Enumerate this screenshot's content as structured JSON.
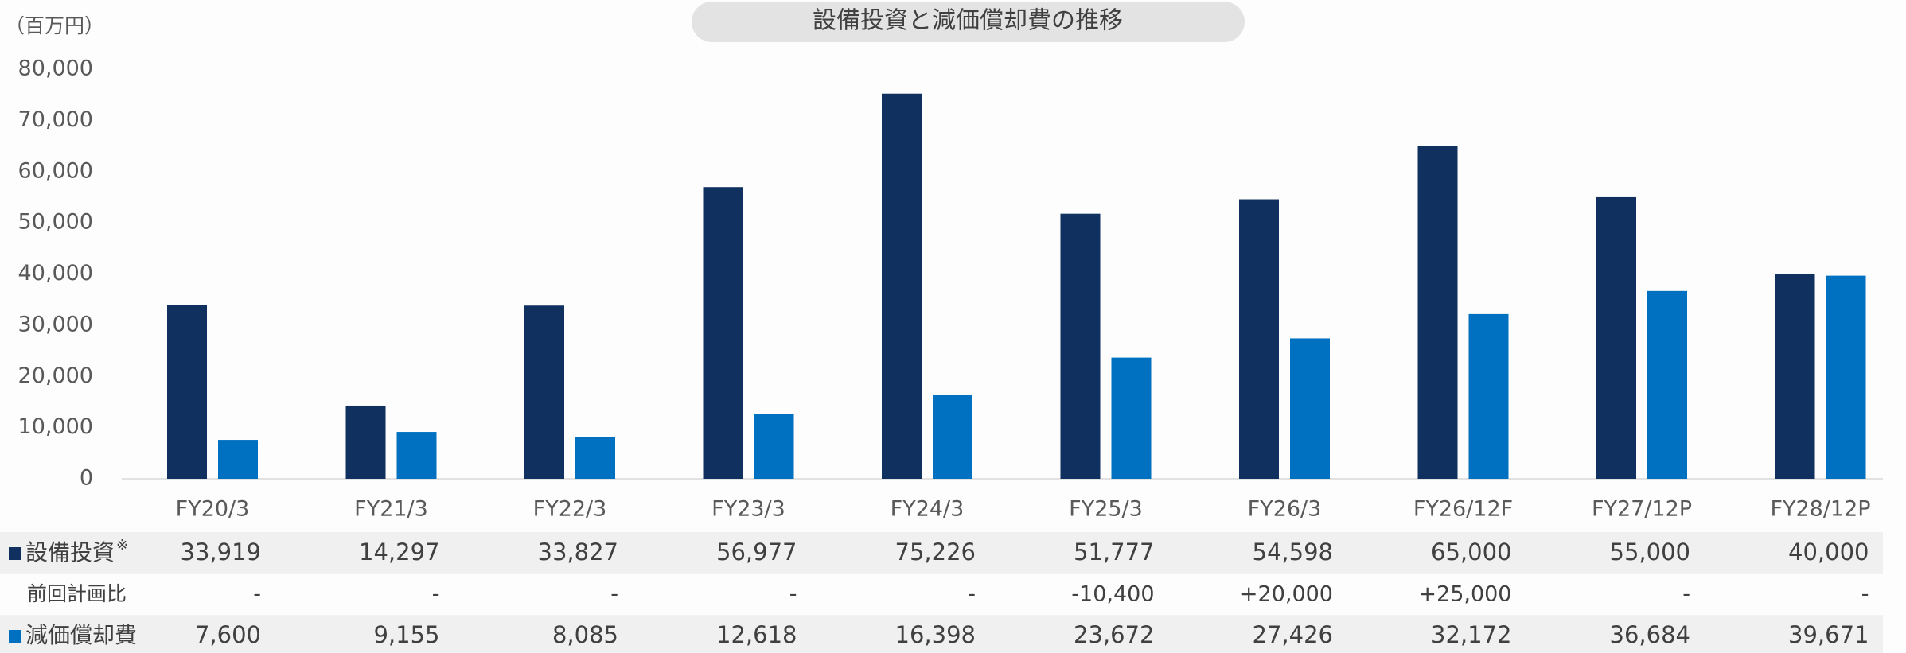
{
  "chart_data": {
    "type": "bar",
    "title": "設備投資と減価償却費の推移",
    "y_label": "（百万円）",
    "categories": [
      "FY20/3",
      "FY21/3",
      "FY22/3",
      "FY23/3",
      "FY24/3",
      "FY25/3",
      "FY26/3",
      "FY26/12F",
      "FY27/12P",
      "FY28/12P"
    ],
    "series": [
      {
        "name": "設備投資",
        "name_note": "※",
        "color": "#10305f",
        "values": [
          33919,
          14297,
          33827,
          56977,
          75226,
          51777,
          54598,
          65000,
          55000,
          40000
        ],
        "value_labels": [
          "33,919",
          "14,297",
          "33,827",
          "56,977",
          "75,226",
          "51,777",
          "54,598",
          "65,000",
          "55,000",
          "40,000"
        ]
      },
      {
        "name": "減価償却費",
        "color": "#0070c0",
        "values": [
          7600,
          9155,
          8085,
          12618,
          16398,
          23672,
          27426,
          32172,
          36684,
          39671
        ],
        "value_labels": [
          "7,600",
          "9,155",
          "8,085",
          "12,618",
          "16,398",
          "23,672",
          "27,426",
          "32,172",
          "36,684",
          "39,671"
        ]
      }
    ],
    "comparison": {
      "name": "前回計画比",
      "labels": [
        "-",
        "-",
        "-",
        "-",
        "-",
        "-10,400",
        "+20,000",
        "+25,000",
        "-",
        "-"
      ]
    },
    "ylim": [
      0,
      80000
    ],
    "yticks": [
      0,
      {
        "value": 10000,
        "label": "10,000"
      },
      {
        "value": 20000,
        "label": "20,000"
      },
      {
        "value": 30000,
        "label": "30,000"
      },
      {
        "value": 40000,
        "label": "40,000"
      },
      {
        "value": 50000,
        "label": "50,000"
      },
      {
        "value": 60000,
        "label": "60,000"
      },
      {
        "value": 70000,
        "label": "70,000"
      },
      {
        "value": 80000,
        "label": "80,000"
      }
    ],
    "grid": false
  }
}
